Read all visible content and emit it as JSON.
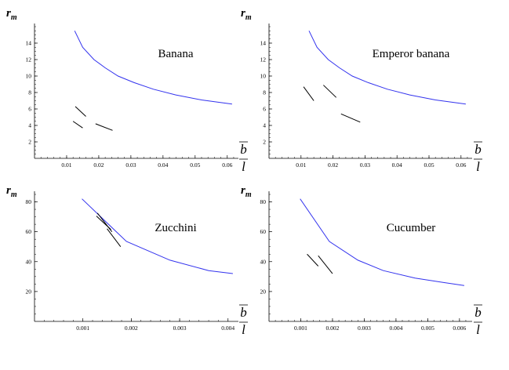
{
  "chart_data": [
    {
      "type": "line",
      "title": "Banana",
      "ylabel_main": "r",
      "ylabel_sub": "m",
      "xlabel_top": "b",
      "xlabel_bottom": "l",
      "xlim": [
        0,
        0.0625
      ],
      "ylim": [
        0,
        16
      ],
      "xticks": [
        "0.01",
        "0.02",
        "0.03",
        "0.04",
        "0.05",
        "0.06"
      ],
      "xtick_values": [
        0.01,
        0.02,
        0.03,
        0.04,
        0.05,
        0.06
      ],
      "yticks": [
        "2",
        "4",
        "6",
        "8",
        "10",
        "12",
        "14"
      ],
      "ytick_values": [
        2,
        4,
        6,
        8,
        10,
        12,
        14
      ],
      "series": [
        {
          "color": "#3333ee",
          "x": [
            0.0125,
            0.015,
            0.0185,
            0.022,
            0.026,
            0.031,
            0.037,
            0.044,
            0.052,
            0.0615
          ],
          "y": [
            15.5,
            13.5,
            12.0,
            11.0,
            10.0,
            9.2,
            8.4,
            7.7,
            7.1,
            6.6
          ]
        }
      ],
      "segments": [
        [
          [
            0.0127,
            6.3
          ],
          [
            0.016,
            5.1
          ]
        ],
        [
          [
            0.012,
            4.5
          ],
          [
            0.015,
            3.7
          ]
        ],
        [
          [
            0.019,
            4.2
          ],
          [
            0.0243,
            3.4
          ]
        ]
      ]
    },
    {
      "type": "line",
      "title": "Emperor banana",
      "ylabel_main": "r",
      "ylabel_sub": "m",
      "xlabel_top": "b",
      "xlabel_bottom": "l",
      "xlim": [
        0,
        0.0625
      ],
      "ylim": [
        0,
        16
      ],
      "xticks": [
        "0.01",
        "0.02",
        "0.03",
        "0.04",
        "0.05",
        "0.06"
      ],
      "xtick_values": [
        0.01,
        0.02,
        0.03,
        0.04,
        0.05,
        0.06
      ],
      "yticks": [
        "2",
        "4",
        "6",
        "8",
        "10",
        "12",
        "14"
      ],
      "ytick_values": [
        2,
        4,
        6,
        8,
        10,
        12,
        14
      ],
      "series": [
        {
          "color": "#3333ee",
          "x": [
            0.0125,
            0.015,
            0.0185,
            0.022,
            0.026,
            0.031,
            0.037,
            0.044,
            0.052,
            0.0615
          ],
          "y": [
            15.5,
            13.5,
            12.0,
            11.0,
            10.0,
            9.2,
            8.4,
            7.7,
            7.1,
            6.6
          ]
        }
      ],
      "segments": [
        [
          [
            0.0108,
            8.7
          ],
          [
            0.014,
            7.0
          ]
        ],
        [
          [
            0.017,
            8.9
          ],
          [
            0.021,
            7.4
          ]
        ],
        [
          [
            0.0225,
            5.4
          ],
          [
            0.0285,
            4.4
          ]
        ]
      ]
    },
    {
      "type": "line",
      "title": "Zucchini",
      "ylabel_main": "r",
      "ylabel_sub": "m",
      "xlabel_top": "b",
      "xlabel_bottom": "l",
      "xlim": [
        0,
        0.00415
      ],
      "ylim": [
        0,
        85
      ],
      "xticks": [
        "0.001",
        "0.002",
        "0.003",
        "0.004"
      ],
      "xtick_values": [
        0.001,
        0.002,
        0.003,
        0.004
      ],
      "yticks": [
        "20",
        "40",
        "60",
        "80"
      ],
      "ytick_values": [
        20,
        40,
        60,
        80
      ],
      "series": [
        {
          "color": "#3333ee",
          "x": [
            0.00098,
            0.0019,
            0.0028,
            0.0036,
            0.0041
          ],
          "y": [
            82,
            53.5,
            41,
            34,
            32
          ]
        }
      ],
      "segments": [
        [
          [
            0.0013,
            72.5
          ],
          [
            0.0016,
            60.0
          ]
        ],
        [
          [
            0.00128,
            70.5
          ],
          [
            0.00158,
            61.5
          ]
        ],
        [
          [
            0.0015,
            62.0
          ],
          [
            0.00178,
            50.0
          ]
        ]
      ]
    },
    {
      "type": "line",
      "title": "Cucumber",
      "ylabel_main": "r",
      "ylabel_sub": "m",
      "xlabel_top": "b",
      "xlabel_bottom": "l",
      "xlim": [
        0,
        0.0063
      ],
      "ylim": [
        0,
        85
      ],
      "xticks": [
        "0.001",
        "0.002",
        "0.003",
        "0.004",
        "0.005",
        "0.006"
      ],
      "xtick_values": [
        0.001,
        0.002,
        0.003,
        0.004,
        0.005,
        0.006
      ],
      "yticks": [
        "20",
        "40",
        "60",
        "80"
      ],
      "ytick_values": [
        20,
        40,
        60,
        80
      ],
      "series": [
        {
          "color": "#3333ee",
          "x": [
            0.00098,
            0.0019,
            0.0028,
            0.0036,
            0.0046,
            0.0055,
            0.00615
          ],
          "y": [
            82,
            53.5,
            41,
            34,
            29,
            26,
            24
          ]
        }
      ],
      "segments": [
        [
          [
            0.0012,
            45.0
          ],
          [
            0.00155,
            37.0
          ]
        ],
        [
          [
            0.00155,
            44.0
          ],
          [
            0.002,
            32.0
          ]
        ]
      ]
    }
  ]
}
